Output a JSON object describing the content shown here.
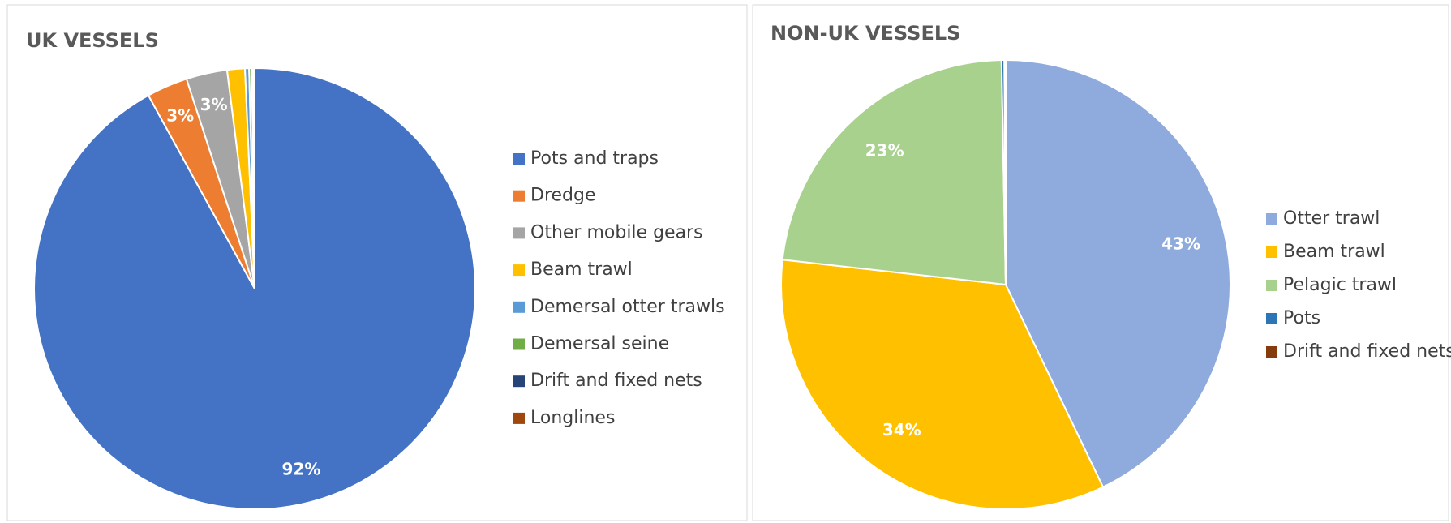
{
  "chart_data": [
    {
      "type": "pie",
      "title": "UK VESSELS",
      "categories": [
        "Pots and traps",
        "Dredge",
        "Other mobile gears",
        "Beam trawl",
        "Demersal otter trawls",
        "Demersal seine",
        "Drift and fixed nets",
        "Longlines"
      ],
      "values": [
        92,
        3,
        3,
        1.3,
        0.3,
        0.2,
        0.1,
        0.1
      ],
      "value_labels": [
        "92%",
        "3%",
        "3%",
        null,
        null,
        null,
        null,
        null
      ],
      "colors": [
        "#4472c4",
        "#ed7d31",
        "#a5a5a5",
        "#ffc000",
        "#5b9bd5",
        "#70ad47",
        "#264478",
        "#9e480e"
      ],
      "legend": "right"
    },
    {
      "type": "pie",
      "title": "NON-UK VESSELS",
      "categories": [
        "Otter trawl",
        "Beam trawl",
        "Pelagic trawl",
        "Pots",
        "Drift and fixed nets"
      ],
      "values": [
        43,
        34,
        23,
        0.2,
        0.1
      ],
      "value_labels": [
        "43%",
        "34%",
        "23%",
        null,
        null
      ],
      "colors": [
        "#8faadc",
        "#ffc000",
        "#a9d18e",
        "#2e75b6",
        "#843c0c"
      ],
      "legend": "right"
    }
  ]
}
